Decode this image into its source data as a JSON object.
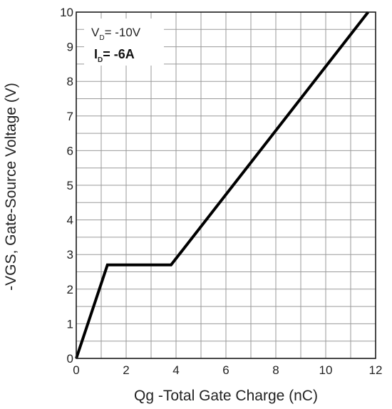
{
  "chart_data": {
    "type": "line",
    "xlabel": "Qg -Total Gate Charge (nC)",
    "ylabel": "-VGS, Gate-Source Voltage (V)",
    "xlim": [
      0,
      12
    ],
    "ylim": [
      0,
      10
    ],
    "xticks": [
      "0",
      "2",
      "4",
      "6",
      "8",
      "10",
      "12"
    ],
    "yticks": [
      "0",
      "1",
      "2",
      "3",
      "4",
      "5",
      "6",
      "7",
      "8",
      "9",
      "10"
    ],
    "x_minor_step": 1,
    "y_minor_step": 0.5,
    "grid": true,
    "series": [
      {
        "x": [
          0,
          1.25,
          3.8,
          11.7
        ],
        "y": [
          0,
          2.7,
          2.7,
          10
        ],
        "color": "#000000"
      }
    ],
    "annotations": {
      "vd": {
        "prefix": "V",
        "sub": "D",
        "value": "= -10V"
      },
      "id": {
        "prefix": "I",
        "sub": "D",
        "value": "= -6A"
      }
    }
  }
}
